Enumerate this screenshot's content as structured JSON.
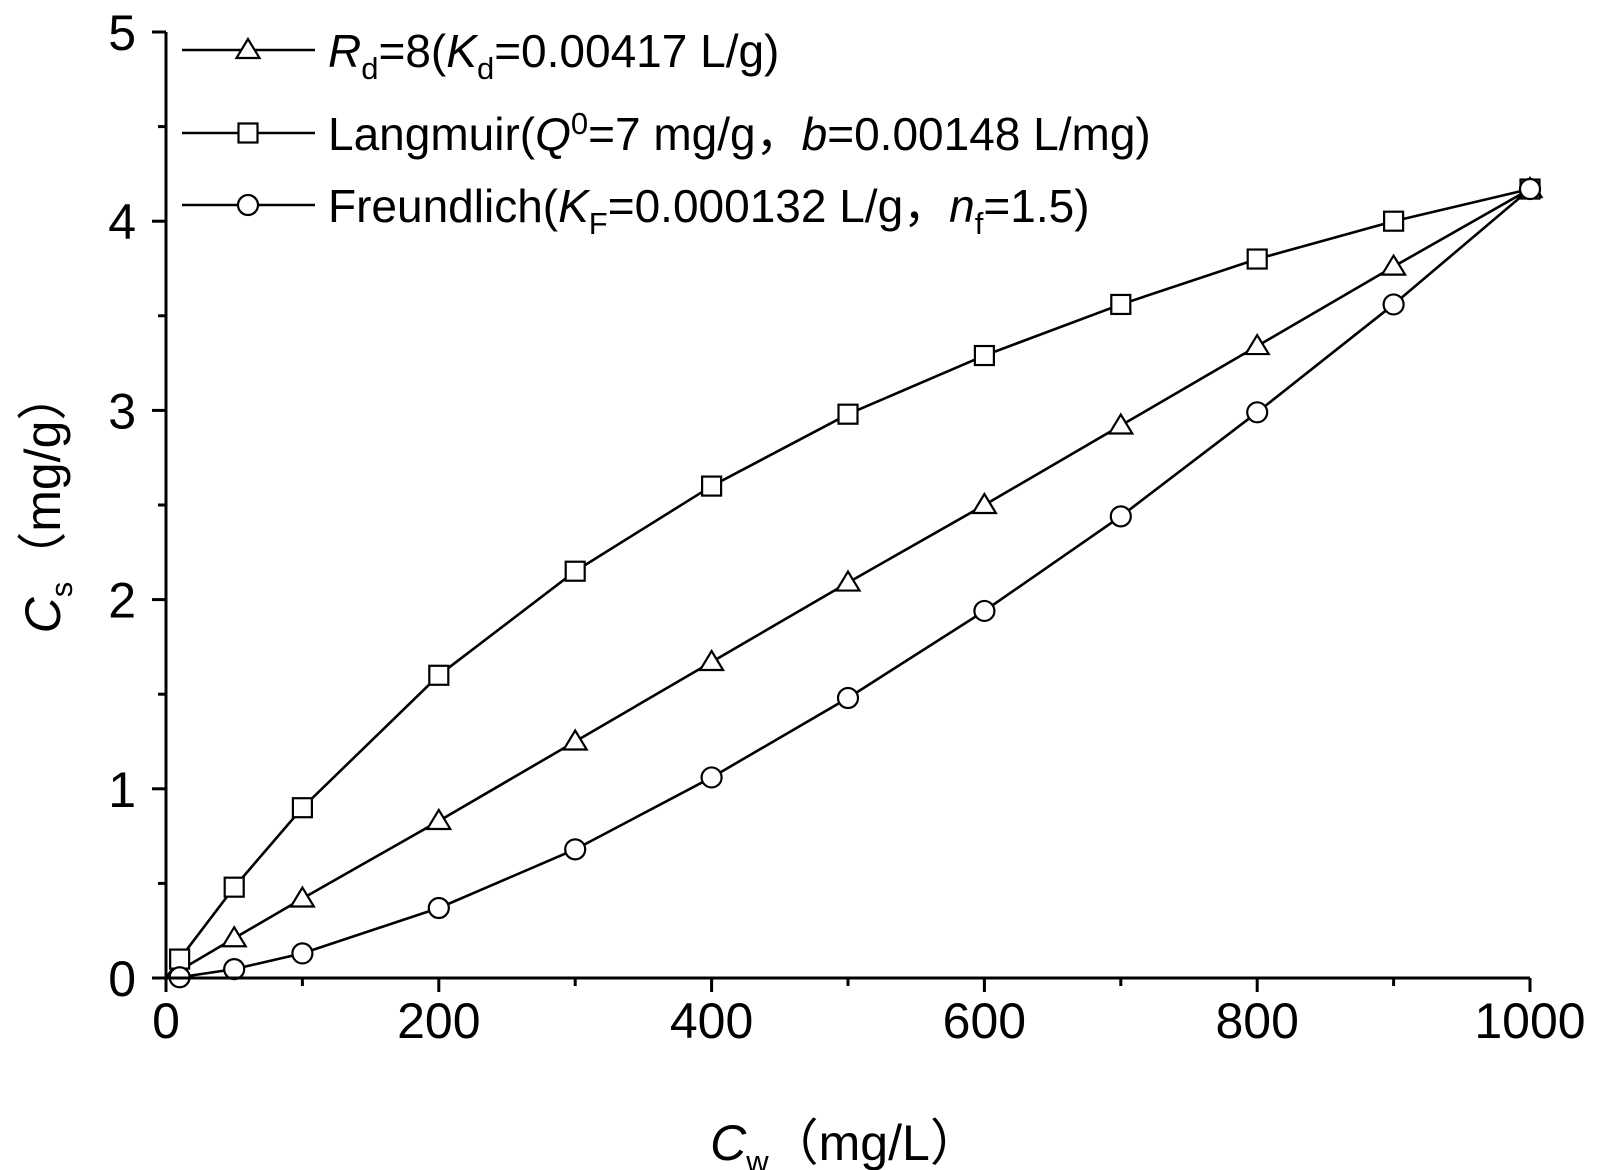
{
  "chart_data": {
    "type": "line",
    "x_axis": {
      "label_main": "C",
      "label_sub": "w",
      "label_unit": "（mg/L）",
      "lim": [
        0,
        1000
      ],
      "ticks": [
        0,
        200,
        400,
        600,
        800,
        1000
      ],
      "tick_labels": [
        "0",
        "200",
        "400",
        "600",
        "800",
        "1000"
      ],
      "minor_step": 100
    },
    "y_axis": {
      "label_main": "C",
      "label_sub": "s",
      "label_unit": "（mg/g）",
      "lim": [
        0,
        5
      ],
      "ticks": [
        0,
        1,
        2,
        3,
        4,
        5
      ],
      "tick_labels": [
        "0",
        "1",
        "2",
        "3",
        "4",
        "5"
      ],
      "minor_step": 0.5
    },
    "grid": false,
    "legend_position": "top-left",
    "series": [
      {
        "key": "linear",
        "marker": "triangle",
        "legend_parts": [
          {
            "t": "R",
            "s": "it"
          },
          {
            "t": "d",
            "s": "sub"
          },
          {
            "t": "=8(",
            "s": ""
          },
          {
            "t": "K",
            "s": "it"
          },
          {
            "t": "d",
            "s": "sub"
          },
          {
            "t": "=0.00417 L/g)",
            "s": ""
          }
        ],
        "x": [
          0,
          10,
          50,
          100,
          200,
          300,
          400,
          500,
          600,
          700,
          800,
          900,
          1000
        ],
        "y": [
          0,
          0.04,
          0.21,
          0.42,
          0.83,
          1.25,
          1.67,
          2.09,
          2.5,
          2.92,
          3.34,
          3.76,
          4.17
        ]
      },
      {
        "key": "langmuir",
        "marker": "square",
        "legend_parts": [
          {
            "t": "Langmuir(",
            "s": ""
          },
          {
            "t": "Q",
            "s": "it"
          },
          {
            "t": "0",
            "s": "sup"
          },
          {
            "t": "=7 mg/g，",
            "s": ""
          },
          {
            "t": "b",
            "s": "it"
          },
          {
            "t": "=0.00148 L/mg)",
            "s": ""
          }
        ],
        "x": [
          0,
          10,
          50,
          100,
          200,
          300,
          400,
          500,
          600,
          700,
          800,
          900,
          1000
        ],
        "y": [
          0,
          0.1,
          0.48,
          0.9,
          1.6,
          2.15,
          2.6,
          2.98,
          3.29,
          3.56,
          3.8,
          4.0,
          4.17
        ]
      },
      {
        "key": "freundlich",
        "marker": "circle",
        "legend_parts": [
          {
            "t": "Freundlich(",
            "s": ""
          },
          {
            "t": "K",
            "s": "it"
          },
          {
            "t": "F",
            "s": "sub"
          },
          {
            "t": "=0.000132 L/g，",
            "s": ""
          },
          {
            "t": "n",
            "s": "it"
          },
          {
            "t": "f",
            "s": "sub"
          },
          {
            "t": "=1.5)",
            "s": ""
          }
        ],
        "x": [
          0,
          10,
          50,
          100,
          200,
          300,
          400,
          500,
          600,
          700,
          800,
          900,
          1000
        ],
        "y": [
          0,
          0.004,
          0.047,
          0.13,
          0.37,
          0.68,
          1.06,
          1.48,
          1.94,
          2.44,
          2.99,
          3.56,
          4.17
        ]
      }
    ]
  }
}
